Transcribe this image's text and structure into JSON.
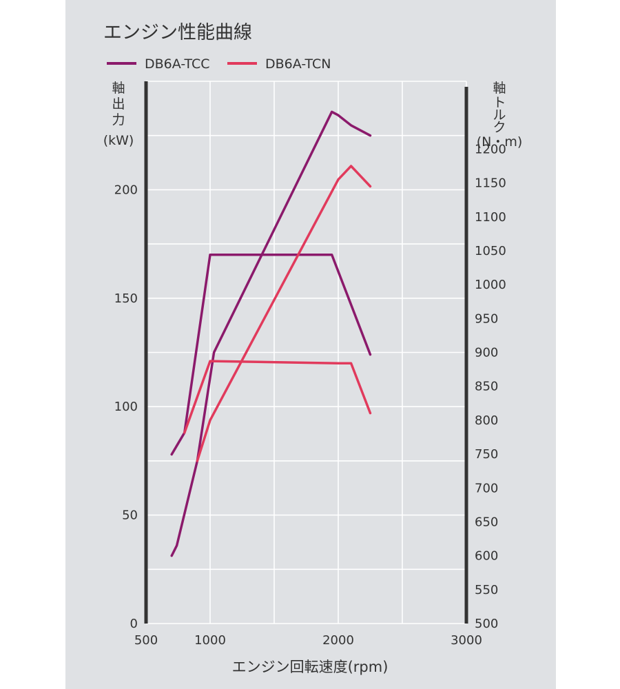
{
  "chart_data": {
    "type": "line",
    "title": "エンジン性能曲線",
    "xlabel": "エンジン回転速度(rpm)",
    "y_left_label": [
      "軸",
      "出",
      "力",
      "(kW)"
    ],
    "y_right_label": [
      "軸",
      "ト",
      "ル",
      "ク",
      "(N・m)"
    ],
    "xlim": [
      500,
      3000
    ],
    "ylim_left": [
      0,
      250
    ],
    "ylim_right": [
      500,
      1300
    ],
    "x_ticks": [
      500,
      1000,
      2000,
      3000
    ],
    "x_grid": [
      500,
      1000,
      1500,
      2000,
      2500,
      3000
    ],
    "y_left_ticks": [
      0,
      50,
      100,
      150,
      200
    ],
    "y_right_ticks": [
      500,
      550,
      600,
      650,
      700,
      750,
      800,
      850,
      900,
      950,
      1000,
      1050,
      1100,
      1150,
      1200
    ],
    "grid": true,
    "legend_position": "top-left",
    "colors": {
      "DB6A-TCC": "#8b1a6b",
      "DB6A-TCN": "#e13a5c",
      "panel": "#dfe1e4",
      "grid": "#ffffff",
      "axis": "#333333"
    },
    "series": [
      {
        "name": "DB6A-TCC",
        "quantity": "power",
        "axis": "left",
        "x": [
          700,
          800,
          1000,
          1950,
          2250
        ],
        "y": [
          78,
          88,
          170,
          170,
          124
        ]
      },
      {
        "name": "DB6A-TCC",
        "quantity": "torque",
        "axis": "right",
        "x": [
          700,
          740,
          900,
          1030,
          1950,
          2000,
          2100,
          2250
        ],
        "y": [
          600,
          615,
          740,
          900,
          1255,
          1250,
          1235,
          1220
        ]
      },
      {
        "name": "DB6A-TCN",
        "quantity": "power",
        "axis": "left",
        "x": [
          800,
          1000,
          2000,
          2100,
          2250
        ],
        "y": [
          88,
          121,
          120,
          120,
          97
        ]
      },
      {
        "name": "DB6A-TCN",
        "quantity": "torque",
        "axis": "right",
        "x": [
          900,
          1000,
          2000,
          2100,
          2250
        ],
        "y": [
          740,
          800,
          1155,
          1175,
          1145
        ]
      }
    ]
  }
}
